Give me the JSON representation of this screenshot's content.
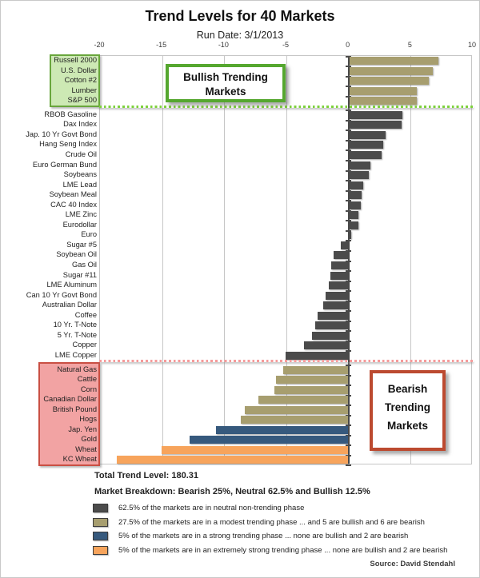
{
  "header": {
    "title": "Trend Levels for 40 Markets",
    "subtitle": "Run Date: 3/1/2013"
  },
  "annotations": {
    "bullish": "Bullish Trending Markets",
    "bearish": "Bearish Trending Markets"
  },
  "chart_data": {
    "type": "bar",
    "orientation": "horizontal",
    "title": "Trend Levels for 40 Markets",
    "xlim": [
      -20,
      10
    ],
    "x_ticks": [
      -20,
      -15,
      -10,
      -5,
      0,
      5,
      10
    ],
    "grid": true,
    "markets": [
      "Russell 2000",
      "U.S. Dollar",
      "Cotton #2",
      "Lumber",
      "S&P 500",
      "RBOB Gasoline",
      "Dax Index",
      "Jap. 10 Yr Govt Bond",
      "Hang Seng Index",
      "Crude Oil",
      "Euro German Bund",
      "Soybeans",
      "LME Lead",
      "Soybean Meal",
      "CAC 40 Index",
      "LME Zinc",
      "Eurodollar",
      "Euro",
      "Sugar #5",
      "Soybean Oil",
      "Gas Oil",
      "Sugar #11",
      "LME Aluminum",
      "Can 10 Yr Govt Bond",
      "Australian Dollar",
      "Coffee",
      "10 Yr. T-Note",
      "5 Yr. T-Note",
      "Copper",
      "LME Copper",
      "Natural Gas",
      "Cattle",
      "Corn",
      "Canadian Dollar",
      "British Pound",
      "Hogs",
      "Jap. Yen",
      "Gold",
      "Wheat",
      "KC Wheat"
    ],
    "values": [
      7.2,
      6.7,
      6.4,
      5.4,
      5.4,
      4.3,
      4.2,
      2.9,
      2.75,
      2.6,
      1.7,
      1.55,
      1.1,
      1.0,
      0.95,
      0.75,
      0.7,
      0.15,
      -0.55,
      -1.15,
      -1.3,
      -1.4,
      -1.5,
      -1.75,
      -2.0,
      -2.4,
      -2.6,
      -2.85,
      -3.5,
      -5.0,
      -5.2,
      -5.8,
      -5.9,
      -7.2,
      -8.3,
      -8.6,
      -10.6,
      -12.7,
      -15.0,
      -18.6
    ],
    "phases": [
      "modest",
      "modest",
      "modest",
      "modest",
      "modest",
      "neutral",
      "neutral",
      "neutral",
      "neutral",
      "neutral",
      "neutral",
      "neutral",
      "neutral",
      "neutral",
      "neutral",
      "neutral",
      "neutral",
      "neutral",
      "neutral",
      "neutral",
      "neutral",
      "neutral",
      "neutral",
      "neutral",
      "neutral",
      "neutral",
      "neutral",
      "neutral",
      "neutral",
      "neutral",
      "modest",
      "modest",
      "modest",
      "modest",
      "modest",
      "modest",
      "strong",
      "strong",
      "extreme",
      "extreme"
    ],
    "phase_colors": {
      "neutral": "#4b4b4b",
      "modest": "#a79e6f",
      "strong": "#36597d",
      "extreme": "#f7a45c"
    },
    "bullish_group_rows": [
      0,
      4
    ],
    "bearish_group_rows": [
      30,
      39
    ],
    "separator_colors": {
      "bullish": "#7ed13d",
      "bearish": "#f59a9a"
    }
  },
  "footer": {
    "total": "Total Trend Level: 180.31",
    "breakdown": "Market Breakdown:  Bearish 25%, Neutral  62.5% and Bullish 12.5%",
    "legend": [
      {
        "phase": "neutral",
        "text": "62.5% of the markets are in neutral non-trending phase"
      },
      {
        "phase": "modest",
        "text": "27.5% of the markets are in a modest trending phase ... and 5 are bullish and 6 are bearish"
      },
      {
        "phase": "strong",
        "text": "5% of the markets are in a strong trending phase ... none are bullish and 2 are bearish"
      },
      {
        "phase": "extreme",
        "text": "5% of the markets are in an extremely strong trending phase ... none are bullish and 2 are bearish"
      }
    ],
    "source": "Source: David Stendahl"
  }
}
